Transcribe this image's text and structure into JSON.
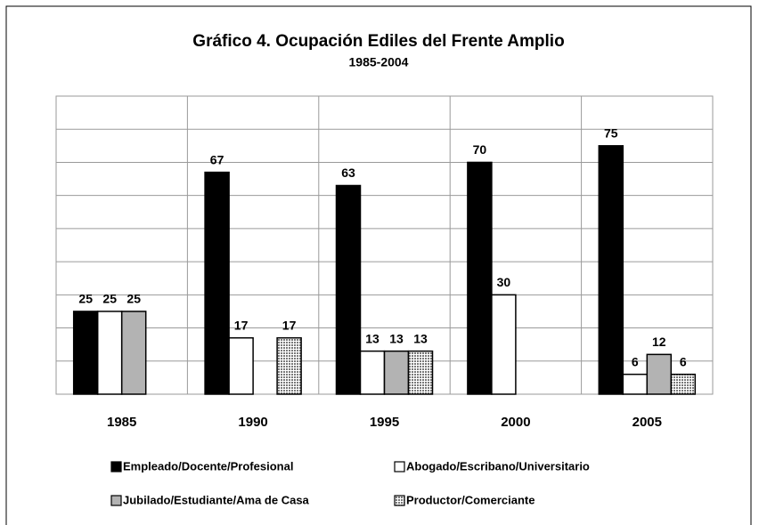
{
  "chart_data": {
    "type": "bar",
    "title": "Gráfico 4. Ocupación Ediles del Frente Amplio",
    "subtitle": "1985-2004",
    "categories": [
      "1985",
      "1990",
      "1995",
      "2000",
      "2005"
    ],
    "series": [
      {
        "name": "Empleado/Docente/Profesional",
        "color": "#000000",
        "values": [
          25,
          67,
          63,
          70,
          75
        ]
      },
      {
        "name": "Abogado/Escribano/Universitario",
        "color": "#ffffff",
        "values": [
          25,
          17,
          13,
          30,
          6
        ]
      },
      {
        "name": "Jubilado/Estudiante/Ama de Casa",
        "color": "#b3b3b3",
        "values": [
          25,
          null,
          13,
          null,
          12
        ]
      },
      {
        "name": "Productor/Comerciante",
        "color": "#7a7a7a",
        "pattern": "checkered",
        "values": [
          null,
          17,
          13,
          null,
          6
        ]
      }
    ],
    "ylim": [
      0,
      90
    ],
    "yticks": [
      0,
      10,
      20,
      30,
      40,
      50,
      60,
      70,
      80,
      90
    ],
    "grid": true
  }
}
